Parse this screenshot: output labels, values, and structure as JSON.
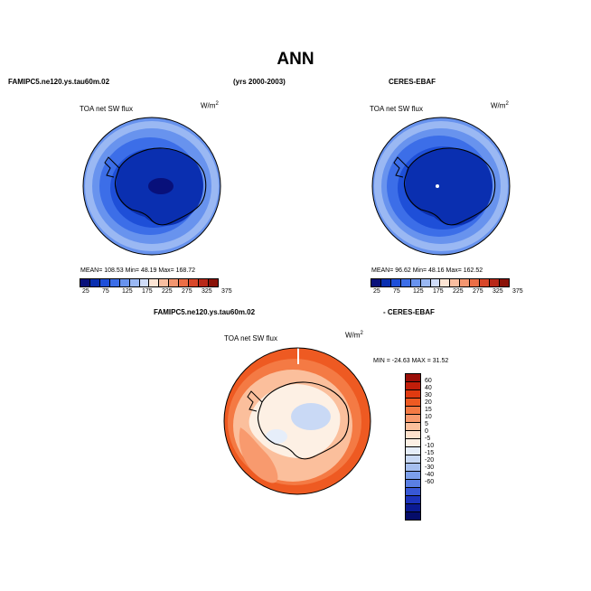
{
  "title": "ANN",
  "left_header": "FAMIPC5.ne120.ys.tau60m.02",
  "center_header": "(yrs 2000-2003)",
  "right_header": "CERES-EBAF",
  "panels": {
    "model": {
      "label": "TOA net SW flux",
      "unit": "W/m",
      "unit_sup": "2",
      "stats": "MEAN=  108.53   Min=   48.19   Max=  168.72"
    },
    "obs": {
      "label": "TOA net SW flux",
      "unit": "W/m",
      "unit_sup": "2",
      "stats": "MEAN=   96.62   Min=   48.16   Max=  162.52"
    },
    "diff": {
      "title_left": "FAMIPC5.ne120.ys.tau60m.02",
      "title_right": "- CERES-EBAF",
      "label": "TOA net SW flux",
      "unit": "W/m",
      "unit_sup": "2",
      "stats": "MIN = -24.63  MAX =  31.52"
    }
  },
  "colorbar_abs": {
    "colors": [
      "#08107a",
      "#0a2fb0",
      "#1e4fd8",
      "#3c6ee8",
      "#6893ee",
      "#9ab8f3",
      "#cfdcf8",
      "#fde5d4",
      "#f9bea0",
      "#f39670",
      "#eb6e46",
      "#d8472a",
      "#b82818",
      "#8a1208"
    ],
    "ticks": [
      "25",
      "75",
      "125",
      "175",
      "225",
      "275",
      "325",
      "375"
    ]
  },
  "colorbar_diff": {
    "colors": [
      "#9a0e08",
      "#c21e0a",
      "#e03a10",
      "#ee5a22",
      "#f47a44",
      "#f89a6e",
      "#fbbf9c",
      "#fde1cc",
      "#fdf0e4",
      "#e6eefa",
      "#c9d9f5",
      "#a6bff0",
      "#7c9feb",
      "#5a7fe4",
      "#3858d6",
      "#1c33bb",
      "#0b1a93",
      "#050c6a"
    ],
    "ticks": [
      "60",
      "40",
      "30",
      "20",
      "15",
      "10",
      "5",
      "0",
      "-5",
      "-10",
      "-15",
      "-20",
      "-30",
      "-40",
      "-60"
    ]
  }
}
